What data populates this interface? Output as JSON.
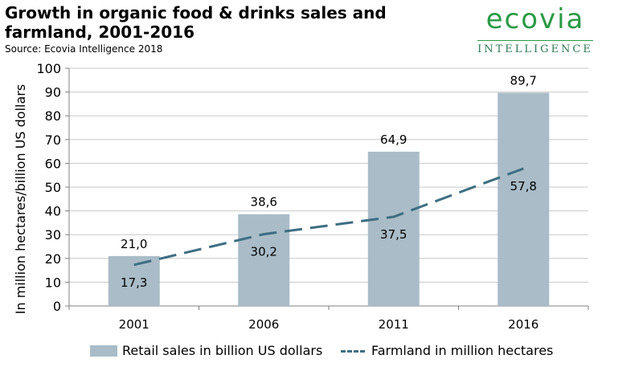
{
  "header": {
    "title": "Growth in organic food & drinks sales and farmland, 2001-2016",
    "source": "Source: Ecovia Intelligence 2018"
  },
  "logo": {
    "word": "ecovia",
    "sub": "INTELLIGENCE",
    "color": "#2a9a45"
  },
  "chart_data": {
    "type": "bar",
    "categories": [
      "2001",
      "2006",
      "2011",
      "2016"
    ],
    "ylabel": "In million hectares/billion US dollars",
    "ylim": [
      0,
      100
    ],
    "yticks": [
      "0",
      "10",
      "20",
      "30",
      "40",
      "50",
      "60",
      "70",
      "80",
      "90",
      "100"
    ],
    "grid": true,
    "legend_position": "bottom",
    "series": [
      {
        "name": "Retail sales in billion US dollars",
        "type": "bar",
        "color": "#a9bcc8",
        "values": [
          21.0,
          38.6,
          64.9,
          89.7
        ],
        "labels": [
          "21,0",
          "38,6",
          "64,9",
          "89,7"
        ]
      },
      {
        "name": "Farmland in million hectares",
        "type": "line",
        "style": "dashed",
        "color": "#3e6e82",
        "values": [
          17.3,
          30.2,
          37.5,
          57.8
        ],
        "labels": [
          "17,3",
          "30,2",
          "37,5",
          "57,8"
        ]
      }
    ]
  }
}
